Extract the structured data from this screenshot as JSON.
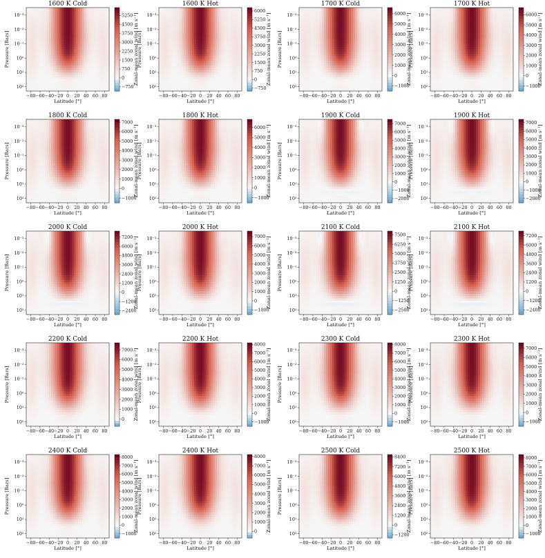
{
  "axis_labels": {
    "x": "Latitude [°]",
    "y": "Pressure [Bars]",
    "colorbar": "Zonal-mean zonal wind [m s⁻¹]"
  },
  "chart_data": {
    "type": "heatmap",
    "x_ticks": [
      -80,
      -60,
      -40,
      -20,
      0,
      20,
      40,
      60,
      80
    ],
    "x_range": [
      -90,
      90
    ],
    "y_tick_labels": [
      "10⁻³",
      "10⁻²",
      "10⁻¹",
      "10⁰",
      "10¹",
      "10²"
    ],
    "y_log": true,
    "y_range_bars": [
      0.0003,
      200
    ],
    "colormap": "diverging red-blue (RdBu_r)",
    "colors": {
      "max": "#67001f",
      "pos": "#d6604d",
      "zero": "#f7f7f7",
      "neg": "#4393c3"
    },
    "panels": [
      {
        "title": "1600 K Cold",
        "cbar_ticks": [
          5250,
          4500,
          3750,
          3000,
          2250,
          1500,
          750,
          0,
          -750
        ],
        "vmin": -1100,
        "vmax": 5900
      },
      {
        "title": "1600 K Hot",
        "cbar_ticks": [
          6000,
          5250,
          4500,
          3750,
          3000,
          2250,
          1500,
          750,
          0,
          -750
        ],
        "vmin": -1000,
        "vmax": 6300
      },
      {
        "title": "1700 K Cold",
        "cbar_ticks": [
          6000,
          5000,
          4000,
          3000,
          2000,
          1000,
          0,
          -1000
        ],
        "vmin": -1500,
        "vmax": 6600
      },
      {
        "title": "1700 K Hot",
        "cbar_ticks": [
          6000,
          5000,
          4000,
          3000,
          2000,
          1000,
          0,
          -1000
        ],
        "vmin": -1500,
        "vmax": 6700
      },
      {
        "title": "1800 K Cold",
        "cbar_ticks": [
          7000,
          6000,
          5000,
          4000,
          3000,
          2000,
          1000,
          0,
          -1000
        ],
        "vmin": -1500,
        "vmax": 7300
      },
      {
        "title": "1800 K Hot",
        "cbar_ticks": [
          6000,
          5000,
          4000,
          3000,
          2000,
          1000,
          0,
          -1000
        ],
        "vmin": -1500,
        "vmax": 6800
      },
      {
        "title": "1900 K Cold",
        "cbar_ticks": [
          7000,
          6000,
          5000,
          4000,
          3000,
          2000,
          1000,
          0,
          -1000,
          -2000
        ],
        "vmin": -2500,
        "vmax": 7500
      },
      {
        "title": "1900 K Hot",
        "cbar_ticks": [
          7000,
          6000,
          5000,
          4000,
          3000,
          2000,
          1000,
          0,
          -1000,
          -2000
        ],
        "vmin": -2500,
        "vmax": 7400
      },
      {
        "title": "2000 K Cold",
        "cbar_ticks": [
          7200,
          6000,
          4800,
          3600,
          2400,
          1200,
          0,
          -1200,
          -2400
        ],
        "vmin": -2900,
        "vmax": 8000
      },
      {
        "title": "2000 K Hot",
        "cbar_ticks": [
          7000,
          6000,
          5000,
          4000,
          3000,
          2000,
          1000,
          0,
          -1000
        ],
        "vmin": -1500,
        "vmax": 7600
      },
      {
        "title": "2100 K Cold",
        "cbar_ticks": [
          7500,
          6250,
          5000,
          3750,
          2500,
          1250,
          0,
          -1250,
          -2500
        ],
        "vmin": -3100,
        "vmax": 8000
      },
      {
        "title": "2100 K Hot",
        "cbar_ticks": [
          7200,
          6000,
          4800,
          3600,
          2400,
          1200,
          0,
          -1200,
          -2400
        ],
        "vmin": -3000,
        "vmax": 7800
      },
      {
        "title": "2200 K Cold",
        "cbar_ticks": [
          7000,
          6000,
          5000,
          4000,
          3000,
          2000,
          1000,
          0
        ],
        "vmin": -700,
        "vmax": 7700
      },
      {
        "title": "2200 K Hot",
        "cbar_ticks": [
          8000,
          7000,
          6000,
          5000,
          4000,
          3000,
          2000,
          1000,
          0,
          -1000
        ],
        "vmin": -1500,
        "vmax": 8200
      },
      {
        "title": "2300 K Cold",
        "cbar_ticks": [
          8000,
          7000,
          6000,
          5000,
          4000,
          3000,
          2000,
          1000,
          0,
          -1000
        ],
        "vmin": -1500,
        "vmax": 8200
      },
      {
        "title": "2300 K Hot",
        "cbar_ticks": [
          7000,
          6000,
          5000,
          4000,
          3000,
          2000,
          1000,
          0,
          -1000
        ],
        "vmin": -1500,
        "vmax": 7600
      },
      {
        "title": "2400 K Cold",
        "cbar_ticks": [
          8000,
          7000,
          6000,
          5000,
          4000,
          3000,
          2000,
          1000,
          0,
          -1000
        ],
        "vmin": -1500,
        "vmax": 8300
      },
      {
        "title": "2400 K Hot",
        "cbar_ticks": [
          8000,
          7000,
          6000,
          5000,
          4000,
          3000,
          2000,
          1000,
          0
        ],
        "vmin": -700,
        "vmax": 8200
      },
      {
        "title": "2500 K Cold",
        "cbar_ticks": [
          8400,
          7200,
          6000,
          4800,
          3600,
          2400,
          1200,
          0,
          -1200
        ],
        "vmin": -1600,
        "vmax": 8700
      },
      {
        "title": "2500 K Hot",
        "cbar_ticks": [
          8000,
          7000,
          6000,
          5000,
          4000,
          3000,
          2000,
          1000,
          0,
          -1000
        ],
        "vmin": -1500,
        "vmax": 8400
      }
    ]
  }
}
